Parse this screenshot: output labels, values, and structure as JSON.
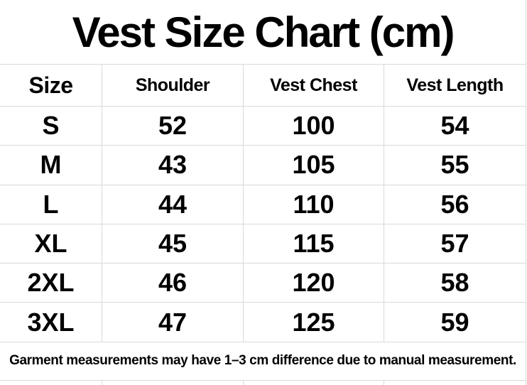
{
  "title": "Vest Size Chart (cm)",
  "chart_data": {
    "type": "table",
    "title": "Vest Size Chart (cm)",
    "units": "cm",
    "columns": [
      "Size",
      "Shoulder",
      "Vest Chest",
      "Vest Length"
    ],
    "rows": [
      [
        "S",
        "52",
        "100",
        "54"
      ],
      [
        "M",
        "43",
        "105",
        "55"
      ],
      [
        "L",
        "44",
        "110",
        "56"
      ],
      [
        "XL",
        "45",
        "115",
        "57"
      ],
      [
        "2XL",
        "46",
        "120",
        "58"
      ],
      [
        "3XL",
        "47",
        "125",
        "59"
      ]
    ],
    "note": "Garment measurements may have 1–3 cm difference due to manual measurement."
  },
  "footer_note": "Garment measurements may have 1–3 cm difference due to manual measurement.",
  "colors": {
    "background": "#ffffff",
    "text": "#000000",
    "grid_line": "#d9d9d9"
  }
}
